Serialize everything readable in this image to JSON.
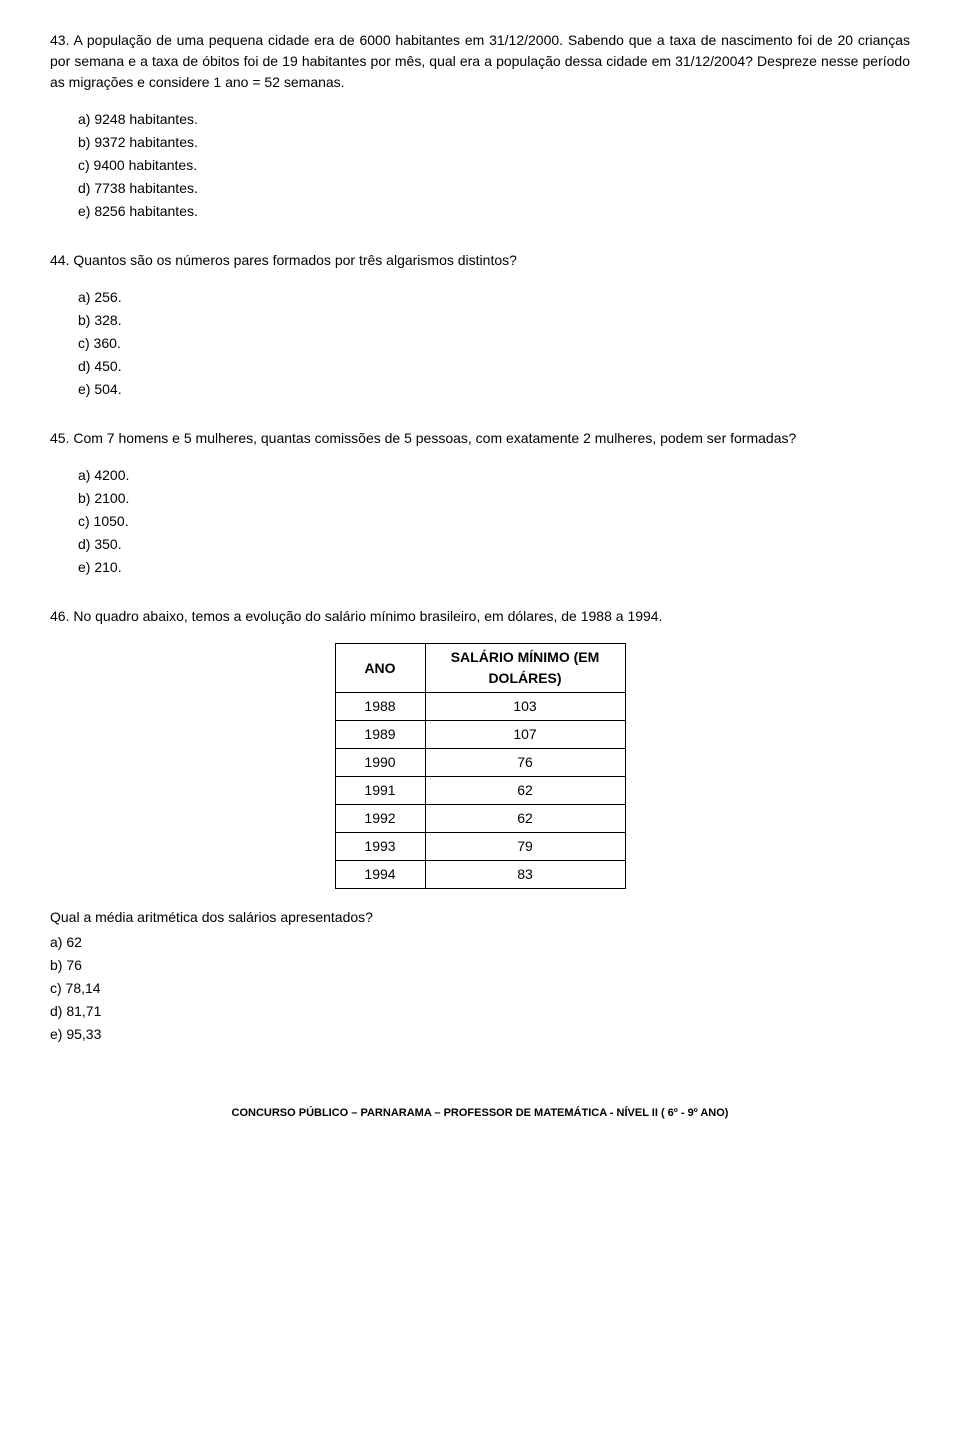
{
  "q43": {
    "num": "43.",
    "text": " A população de uma pequena cidade era de 6000 habitantes em 31/12/2000. Sabendo que a taxa de nascimento foi de 20 crianças por semana e a taxa de óbitos foi de 19 habitantes por mês, qual era a população dessa cidade em 31/12/2004? Despreze nesse período as migrações e considere 1 ano = 52 semanas.",
    "opts": {
      "a": "a)  9248 habitantes.",
      "b": "b)  9372 habitantes.",
      "c": "c)  9400 habitantes.",
      "d": "d)  7738 habitantes.",
      "e": "e)  8256 habitantes."
    }
  },
  "q44": {
    "num": "44.",
    "text": " Quantos são os números pares formados por três algarismos distintos?",
    "opts": {
      "a": "a)  256.",
      "b": "b)  328.",
      "c": "c)  360.",
      "d": "d)  450.",
      "e": "e)  504."
    }
  },
  "q45": {
    "num": "45.",
    "text": " Com 7 homens e 5 mulheres, quantas comissões de 5 pessoas, com exatamente 2 mulheres, podem ser formadas?",
    "opts": {
      "a": "a)  4200.",
      "b": "b)  2100.",
      "c": "c)  1050.",
      "d": "d)  350.",
      "e": "e)  210."
    }
  },
  "q46": {
    "num": "46.",
    "text": " No quadro abaixo, temos a evolução do salário mínimo brasileiro, em dólares, de 1988 a 1994.",
    "table": {
      "header_ano": "ANO",
      "header_sal": "SALÁRIO MÍNIMO   (EM DOLÁRES)",
      "rows": [
        {
          "y": "1988",
          "v": "103"
        },
        {
          "y": "1989",
          "v": "107"
        },
        {
          "y": "1990",
          "v": "76"
        },
        {
          "y": "1991",
          "v": "62"
        },
        {
          "y": "1992",
          "v": "62"
        },
        {
          "y": "1993",
          "v": "79"
        },
        {
          "y": "1994",
          "v": "83"
        }
      ]
    },
    "post": "Qual a média aritmética dos salários apresentados?",
    "opts": {
      "a": "a) 62",
      "b": "b) 76",
      "c": "c) 78,14",
      "d": "d) 81,71",
      "e": "e) 95,33"
    }
  },
  "footer": "CONCURSO PÚBLICO – PARNARAMA – PROFESSOR DE MATEMÁTICA - NÍVEL II ( 6º - 9º ANO)"
}
